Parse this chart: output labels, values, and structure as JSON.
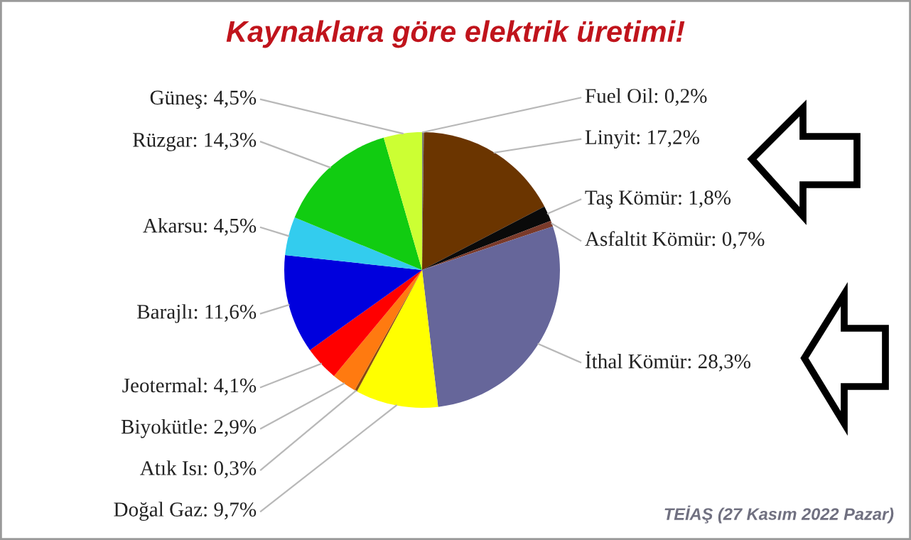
{
  "chart_data": {
    "type": "pie",
    "title": "Kaynaklara göre elektrik üretimi!",
    "categories": [
      "Fuel Oil",
      "Linyit",
      "Taş Kömür",
      "Asfaltit Kömür",
      "İthal Kömür",
      "Doğal Gaz",
      "Atık Isı",
      "Biyokütle",
      "Jeotermal",
      "Barajlı",
      "Akarsu",
      "Rüzgar",
      "Güneş"
    ],
    "values": [
      0.2,
      17.2,
      1.8,
      0.7,
      28.3,
      9.7,
      0.3,
      2.9,
      4.1,
      11.6,
      4.5,
      14.3,
      4.5
    ],
    "value_labels": [
      "0,2%",
      "17,2%",
      "1,8%",
      "0,7%",
      "28,3%",
      "9,7%",
      "0,3%",
      "2,9%",
      "4,1%",
      "11,6%",
      "4,5%",
      "14,3%",
      "4,5%"
    ],
    "colors": [
      "#7a7a7a",
      "#6b3500",
      "#0a0a0a",
      "#7a3a2a",
      "#66669a",
      "#ffff00",
      "#8b4a10",
      "#ff7a10",
      "#ff0000",
      "#0000dd",
      "#33ccee",
      "#11cc11",
      "#ccff33"
    ],
    "annotations": [
      "TEİAŞ (27 Kasım 2022 Pazar)"
    ]
  }
}
